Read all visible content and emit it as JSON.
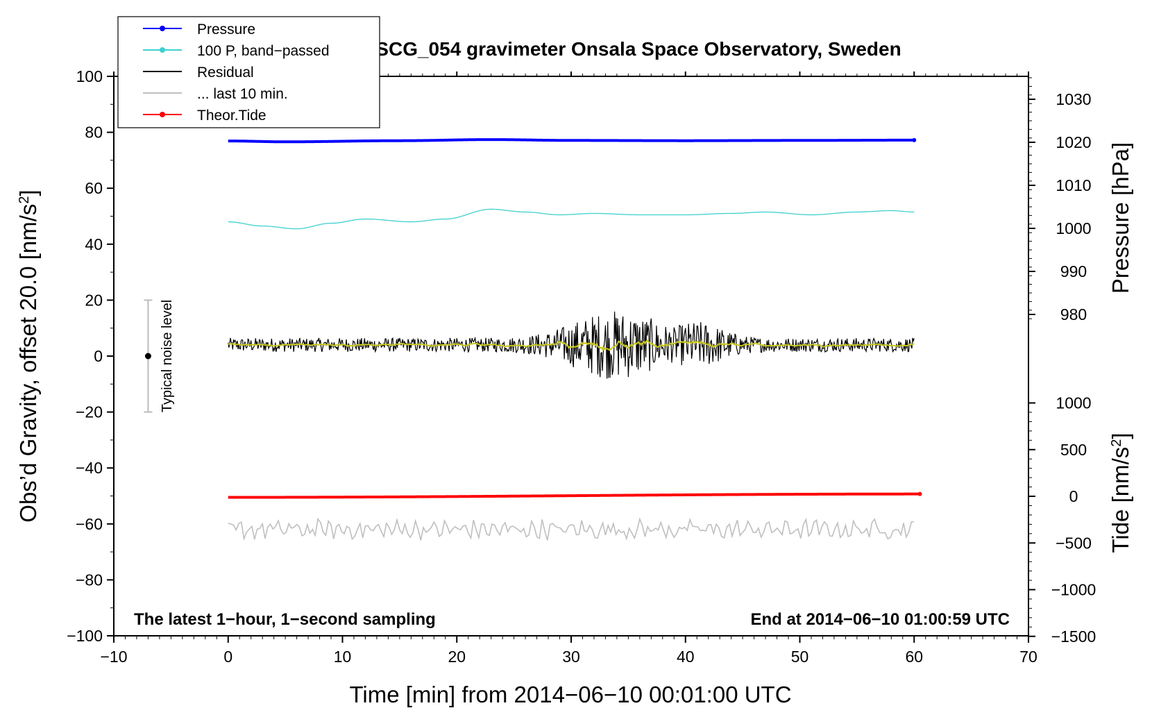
{
  "chart_data": {
    "type": "line",
    "title": "SCG_054 gravimeter Onsala Space Observatory, Sweden",
    "xlabel": "Time [min] from 2014−06−10 00:01:00 UTC",
    "ylabel_main": "Obs’d Gravity, offset 20.0 [nm/s",
    "ylabel_main_sup": "2",
    "ylabel_main_close": "]",
    "ylabel_pressure": "Pressure [hPa]",
    "ylabel_tide": "Tide [nm/s",
    "ylabel_tide_sup": "2",
    "ylabel_tide_close": "]",
    "footer_left": "The latest 1−hour, 1−second sampling",
    "footer_right": "End at 2014−06−10 01:00:59 UTC",
    "noise_label": "Typical noise level",
    "xlim": [
      -10,
      70
    ],
    "ylim": [
      -100,
      100
    ],
    "xticks": [
      -10,
      0,
      10,
      20,
      30,
      40,
      50,
      60,
      70
    ],
    "xtick_labels": [
      "−10",
      "0",
      "10",
      "20",
      "30",
      "40",
      "50",
      "60",
      "70"
    ],
    "yticks": [
      100,
      80,
      60,
      40,
      20,
      0,
      -20,
      -40,
      -60,
      -80,
      -100
    ],
    "ytick_labels": [
      "100",
      "80",
      "60",
      "40",
      "20",
      "0",
      "−20",
      "−40",
      "−60",
      "−80",
      "−100"
    ],
    "pressure_ticks": [
      1030,
      1020,
      1010,
      1000,
      990,
      980
    ],
    "pressure_tick_labels": [
      "1030",
      "1020",
      "1010",
      "1000",
      "990",
      "980"
    ],
    "tide_ticks": [
      1000,
      500,
      0,
      -500,
      -1000,
      -1500
    ],
    "tide_tick_labels": [
      "1000",
      "500",
      "0",
      "−500",
      "−1000",
      "−1500"
    ],
    "legend_placement": "top-left",
    "legend": [
      {
        "label": "Pressure",
        "color": "#0000ff",
        "marker": true
      },
      {
        "label": "100 P, band−passed",
        "color": "#40d0d0",
        "marker": true
      },
      {
        "label": "Residual",
        "color": "#000000",
        "marker": false
      },
      {
        "label": "... last 10 min.",
        "color": "#bfbfbf",
        "marker": false
      },
      {
        "label": "Theor.Tide",
        "color": "#ff0000",
        "marker": true
      }
    ],
    "noise_bar": {
      "x": -7,
      "center": 0,
      "low": -20,
      "high": 20
    },
    "series": [
      {
        "name": "Pressure",
        "color": "#0000ff",
        "x_range": [
          0,
          60
        ],
        "y_points": [
          [
            0,
            76.9
          ],
          [
            5,
            76.6
          ],
          [
            15,
            77.0
          ],
          [
            23,
            77.4
          ],
          [
            30,
            77.1
          ],
          [
            40,
            77.0
          ],
          [
            50,
            77.1
          ],
          [
            60,
            77.2
          ]
        ]
      },
      {
        "name": "100 P, band−passed",
        "color": "#40d0d0",
        "x_range": [
          0,
          60
        ],
        "y_points": [
          [
            0,
            48
          ],
          [
            3,
            46.5
          ],
          [
            6,
            45.5
          ],
          [
            9,
            47.5
          ],
          [
            12,
            49
          ],
          [
            16,
            48
          ],
          [
            19,
            49
          ],
          [
            23,
            52.5
          ],
          [
            26,
            51.5
          ],
          [
            29,
            50.5
          ],
          [
            32,
            51
          ],
          [
            36,
            50.5
          ],
          [
            40,
            50.5
          ],
          [
            44,
            51
          ],
          [
            47,
            51.5
          ],
          [
            51,
            50.5
          ],
          [
            55,
            51.5
          ],
          [
            58,
            52
          ],
          [
            60,
            51.5
          ]
        ]
      },
      {
        "name": "Residual",
        "color": "#000000",
        "x_range": [
          0,
          60
        ],
        "baseline": 4,
        "noise_amp": 2.5,
        "burst": {
          "center": 34,
          "width": 5,
          "amp": 10
        }
      },
      {
        "name": "... last 10 min.",
        "color": "#bfbfbf",
        "x_range": [
          0,
          60
        ],
        "baseline": -62,
        "noise_amp": 2.5
      },
      {
        "name": "Theor.Tide",
        "color": "#ff0000",
        "x_range": [
          0,
          60.5
        ],
        "y_points": [
          [
            0,
            -50.5
          ],
          [
            60.5,
            -49.3
          ]
        ]
      }
    ]
  }
}
